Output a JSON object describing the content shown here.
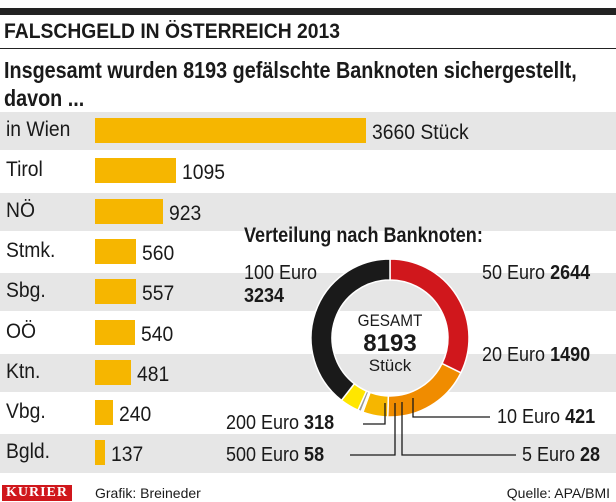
{
  "header": {
    "kicker": "FALSCHGELD IN ÖSTERREICH 2013",
    "headline_line1": "Insgesamt wurden 8193 gefälschte Banknoten sichergestellt,",
    "headline_line2": "davon ..."
  },
  "chart_data": [
    {
      "type": "bar",
      "orientation": "horizontal",
      "categories": [
        "in Wien",
        "Tirol",
        "NÖ",
        "Stmk.",
        "Sbg.",
        "OÖ",
        "Ktn.",
        "Vbg.",
        "Bgld."
      ],
      "values": [
        3660,
        1095,
        923,
        560,
        557,
        540,
        481,
        240,
        137
      ],
      "value_labels": [
        "3660 Stück",
        "1095",
        "923",
        "560",
        "557",
        "540",
        "481",
        "240",
        "137"
      ],
      "bar_color": "#f6b600",
      "row_colors": [
        "#e6e6e6",
        "#ffffff"
      ]
    },
    {
      "type": "pie",
      "style": "donut",
      "title": "Verteilung nach Banknoten:",
      "center_label_top": "GESAMT",
      "center_value": "8193",
      "center_label_bottom": "Stück",
      "slices": [
        {
          "name": "50 Euro",
          "value": 2644,
          "value_label": "2644",
          "color": "#d0171c"
        },
        {
          "name": "20 Euro",
          "value": 1490,
          "value_label": "1490",
          "color": "#f08c00"
        },
        {
          "name": "10 Euro",
          "value": 421,
          "value_label": "421",
          "color": "#f6b600"
        },
        {
          "name": "5 Euro",
          "value": 28,
          "value_label": "28",
          "color": "#c8c8c8"
        },
        {
          "name": "500 Euro",
          "value": 58,
          "value_label": "58",
          "color": "#9a9a9a"
        },
        {
          "name": "200 Euro",
          "value": 318,
          "value_label": "318",
          "color": "#ffe600"
        },
        {
          "name": "100 Euro",
          "value": 3234,
          "value_label": "3234",
          "color": "#1a1a1a"
        }
      ]
    }
  ],
  "footer": {
    "logo": "KURIER",
    "credit": "Grafik: Breineder",
    "source": "Quelle: APA/BMI"
  }
}
